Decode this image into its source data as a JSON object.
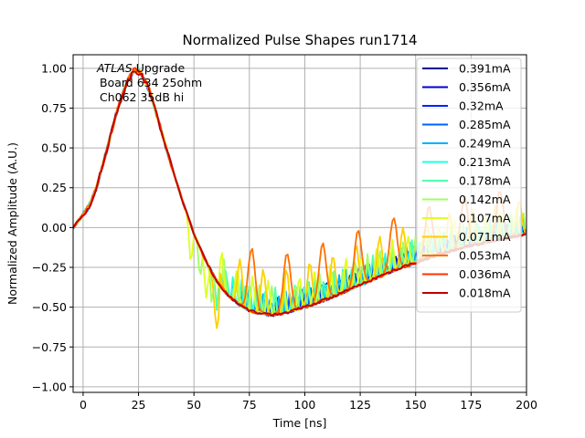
{
  "chart_data": {
    "type": "line",
    "title": "Normalized Pulse Shapes run1714",
    "xlabel": "Time [ns]",
    "ylabel": "Normalized Amplitude (A.U.)",
    "xlim": [
      -4.5,
      200
    ],
    "ylim": [
      -1.035,
      1.085
    ],
    "xticks": [
      0,
      25,
      50,
      75,
      100,
      125,
      150,
      175,
      200
    ],
    "xtick_labels": [
      "0",
      "25",
      "50",
      "75",
      "100",
      "125",
      "150",
      "175",
      "200"
    ],
    "yticks": [
      1.0,
      0.75,
      0.5,
      0.25,
      0.0,
      -0.25,
      -0.5,
      -0.75,
      -1.0
    ],
    "ytick_labels": [
      "1.00",
      "0.75",
      "0.50",
      "0.25",
      "0.00",
      "−0.25",
      "−0.50",
      "−0.75",
      "−1.00"
    ],
    "grid": true,
    "legend_position": "upper-right",
    "annotation": {
      "lines": [
        "ATLAS",
        " Upgrade",
        "Board 634 25ohm",
        "Ch062 35dB hi"
      ]
    },
    "base_shape": {
      "description": "Common normalized bipolar pulse shared by all series (t in ns, amplitude A.U.)",
      "t": [
        -4.5,
        0,
        3,
        6,
        10,
        15,
        20,
        23,
        26,
        30,
        35,
        40,
        45,
        50,
        55,
        60,
        65,
        70,
        75,
        80,
        85,
        90,
        95,
        100,
        110,
        120,
        130,
        140,
        150,
        160,
        170,
        180,
        190,
        200
      ],
      "y": [
        0.0,
        0.08,
        0.14,
        0.25,
        0.45,
        0.72,
        0.92,
        0.99,
        0.97,
        0.86,
        0.62,
        0.38,
        0.16,
        -0.04,
        -0.2,
        -0.33,
        -0.42,
        -0.48,
        -0.52,
        -0.54,
        -0.55,
        -0.54,
        -0.52,
        -0.5,
        -0.45,
        -0.39,
        -0.33,
        -0.27,
        -0.22,
        -0.17,
        -0.13,
        -0.1,
        -0.07,
        -0.04
      ]
    },
    "series": [
      {
        "name": "0.391mA",
        "color": "#00008f",
        "ripple_start": 80,
        "ripple_amp": 0.1,
        "ripple_period": 2.6
      },
      {
        "name": "0.356mA",
        "color": "#0000d6",
        "ripple_start": 78,
        "ripple_amp": 0.11,
        "ripple_period": 2.7
      },
      {
        "name": "0.32mA",
        "color": "#0020ff",
        "ripple_start": 74,
        "ripple_amp": 0.12,
        "ripple_period": 2.9
      },
      {
        "name": "0.285mA",
        "color": "#0060ff",
        "ripple_start": 70,
        "ripple_amp": 0.13,
        "ripple_period": 3.1
      },
      {
        "name": "0.249mA",
        "color": "#00b0ff",
        "ripple_start": 66,
        "ripple_amp": 0.15,
        "ripple_period": 3.4
      },
      {
        "name": "0.213mA",
        "color": "#20ffdf",
        "ripple_start": 62,
        "ripple_amp": 0.17,
        "ripple_period": 3.8
      },
      {
        "name": "0.178mA",
        "color": "#50ffaf",
        "ripple_start": 58,
        "ripple_amp": 0.18,
        "ripple_period": 4.4
      },
      {
        "name": "0.142mA",
        "color": "#9fff60",
        "ripple_start": 50,
        "ripple_amp": 0.2,
        "ripple_period": 5.4
      },
      {
        "name": "0.107mA",
        "color": "#dfff20",
        "ripple_start": 45,
        "ripple_amp": 0.24,
        "ripple_period": 7.0
      },
      {
        "name": "0.071mA",
        "color": "#ffcf00",
        "ripple_start": 55,
        "ripple_amp": 0.3,
        "ripple_period": 10.5
      },
      {
        "name": "0.053mA",
        "color": "#ff7000",
        "ripple_start": 68,
        "ripple_amp": 0.4,
        "ripple_period": 16.0
      },
      {
        "name": "0.036mA",
        "color": "#ff3000",
        "ripple_start": 999,
        "ripple_amp": 0.0,
        "ripple_period": 1.0
      },
      {
        "name": "0.018mA",
        "color": "#c00000",
        "ripple_start": 999,
        "ripple_amp": 0.0,
        "ripple_period": 1.0
      }
    ]
  }
}
